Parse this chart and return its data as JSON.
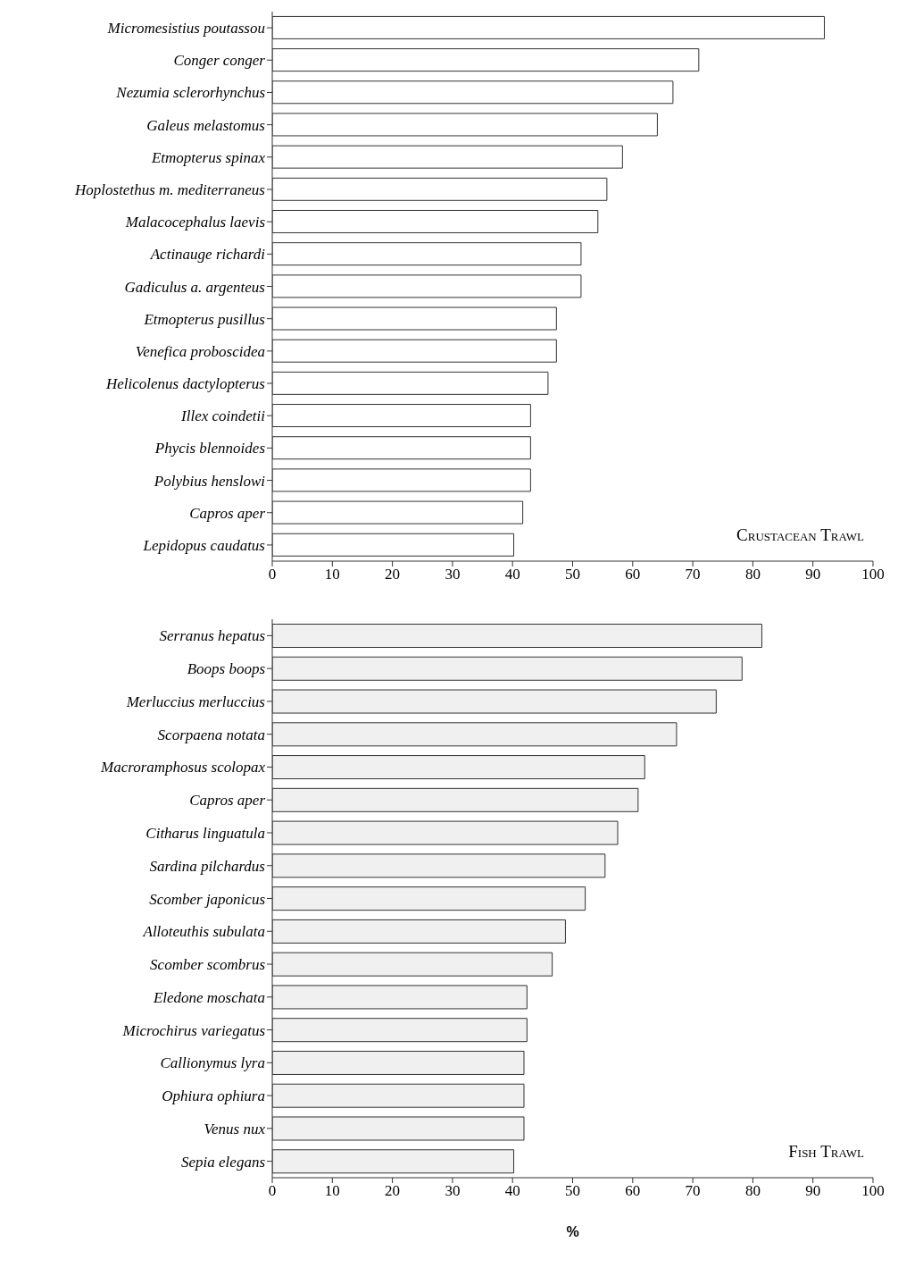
{
  "chart_data": [
    {
      "type": "bar",
      "orientation": "horizontal",
      "categories": [
        "Micromesistius poutassou",
        "Conger conger",
        "Nezumia sclerorhynchus",
        "Galeus melastomus",
        "Etmopterus spinax",
        "Hoplostethus m. mediterraneus",
        "Malacocephalus laevis",
        "Actinauge richardi",
        "Gadiculus a. argenteus",
        "Etmopterus pusillus",
        "Venefica proboscidea",
        "Helicolenus dactylopterus",
        "Illex coindetii",
        "Phycis blennoides",
        "Polybius henslowi",
        "Capros aper",
        "Lepidopus caudatus"
      ],
      "values": [
        91.9,
        71.0,
        66.7,
        64.1,
        58.3,
        55.7,
        54.2,
        51.4,
        51.4,
        47.3,
        47.3,
        45.9,
        43.0,
        43.0,
        43.0,
        41.7,
        40.2
      ],
      "color": "#ffffff",
      "xlim": [
        0,
        100
      ],
      "xticks": [
        0,
        10,
        20,
        30,
        40,
        50,
        60,
        70,
        80,
        90,
        100
      ],
      "grid": false,
      "legend": false,
      "annotations": [
        "Crustacean Trawl"
      ]
    },
    {
      "type": "bar",
      "orientation": "horizontal",
      "categories": [
        "Serranus hepatus",
        "Boops boops",
        "Merluccius merluccius",
        "Scorpaena notata",
        "Macroramphosus scolopax",
        "Capros aper",
        "Citharus linguatula",
        "Sardina pilchardus",
        "Scomber japonicus",
        "Alloteuthis subulata",
        "Scomber scombrus",
        "Eledone moschata",
        "Microchirus variegatus",
        "Callionymus lyra",
        "Ophiura ophiura",
        "Venus nux",
        "Sepia elegans"
      ],
      "values": [
        81.5,
        78.2,
        73.9,
        67.3,
        62.0,
        60.9,
        57.5,
        55.4,
        52.1,
        48.8,
        46.6,
        42.4,
        42.4,
        41.9,
        41.9,
        41.9,
        40.2
      ],
      "color": "#f0f0f0",
      "xlim": [
        0,
        100
      ],
      "xticks": [
        0,
        10,
        20,
        30,
        40,
        50,
        60,
        70,
        80,
        90,
        100
      ],
      "grid": false,
      "legend": false,
      "xlabel": "%",
      "annotations": [
        "Fish Trawl"
      ]
    }
  ]
}
